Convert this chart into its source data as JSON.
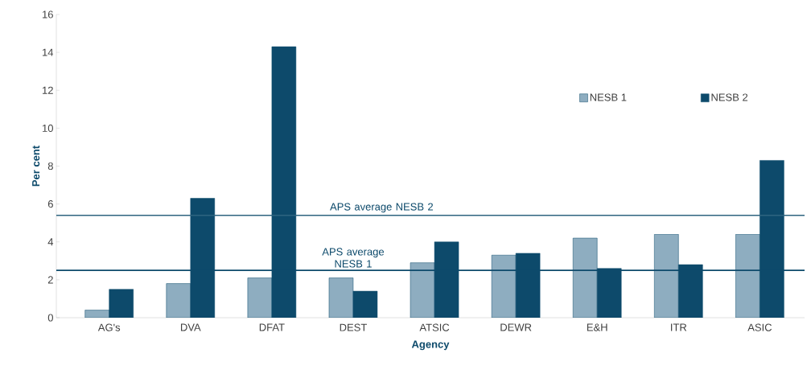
{
  "chart_data": {
    "type": "bar",
    "xlabel": "Agency",
    "ylabel": "Per cent",
    "categories": [
      "AG's",
      "DVA",
      "DFAT",
      "DEST",
      "ATSIC",
      "DEWR",
      "E&H",
      "ITR",
      "ASIC"
    ],
    "series": [
      {
        "name": "NESB 1",
        "color": "#8eadc0",
        "values": [
          0.4,
          1.8,
          2.1,
          2.1,
          2.9,
          3.3,
          4.2,
          4.4,
          4.4
        ]
      },
      {
        "name": "NESB 2",
        "color": "#0d4a6b",
        "values": [
          1.5,
          6.3,
          14.3,
          1.4,
          4.0,
          3.4,
          2.6,
          2.8,
          8.3
        ]
      }
    ],
    "ylim": [
      0,
      16
    ],
    "yticks": [
      0,
      2,
      4,
      6,
      8,
      10,
      12,
      14,
      16
    ],
    "ref_lines": [
      {
        "axis": "y",
        "value": 5.4,
        "label": "APS average NESB 2",
        "color": "#2f6480"
      },
      {
        "axis": "y",
        "value": 2.5,
        "label": "APS average NESB 1",
        "color": "#0d4a6b"
      }
    ],
    "grid": false,
    "legend": "top right"
  }
}
